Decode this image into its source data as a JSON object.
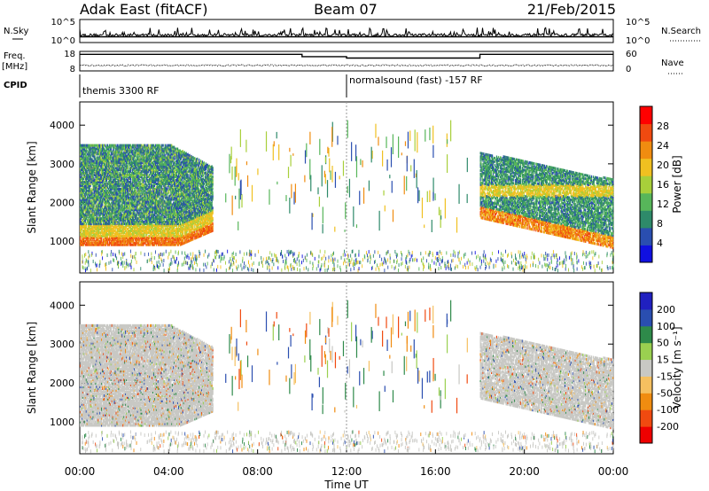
{
  "header": {
    "station": "Adak East (fitACF)",
    "beam": "Beam 07",
    "date": "21/Feb/2015"
  },
  "left_labels": {
    "nsky": "N.Sky",
    "freq": "Freq.",
    "freq_unit": "[MHz]",
    "cpid": "CPID"
  },
  "right_labels": {
    "nsearch": "N.Search",
    "nave": "Nave"
  },
  "cpid_labels": [
    "themis 3300 RF",
    "normalsound (fast) -157 RF"
  ],
  "colors": {
    "frame": "#000000",
    "power_scale": [
      "#1010e0",
      "#2a4eb0",
      "#2e8a6a",
      "#57b65a",
      "#a8cf3a",
      "#f0c020",
      "#f08c10",
      "#f04a10",
      "#ff0000"
    ],
    "velocity_scale": [
      "#ee0000",
      "#f04a10",
      "#f08c10",
      "#f5c060",
      "#c8c8c4",
      "#9ad050",
      "#2e8a4a",
      "#2a4eb0",
      "#2020c0"
    ]
  },
  "chart_data": [
    {
      "type": "line",
      "name": "noise",
      "ylabel_left": "N.Sky",
      "ylabel_right": "N.Search",
      "left_ticks": [
        "10^5",
        "10^0"
      ],
      "right_ticks": [
        "10^5",
        "10^0"
      ]
    },
    {
      "type": "line",
      "name": "frequency-nave",
      "ylabel_left": "Freq. [MHz]",
      "ylabel_right": "Nave",
      "left_ticks": [
        "18",
        "8"
      ],
      "right_ticks": [
        "60",
        "0"
      ],
      "xlim_hours": [
        0,
        24
      ],
      "series": [
        {
          "name": "Freq.",
          "points": [
            [
              0,
              16.5
            ],
            [
              10,
              16.5
            ],
            [
              10,
              15.3
            ],
            [
              12,
              15.3
            ],
            [
              12,
              14.6
            ],
            [
              18,
              14.6
            ],
            [
              18,
              16.5
            ],
            [
              24,
              16.5
            ]
          ]
        }
      ]
    },
    {
      "type": "heatmap",
      "name": "power",
      "xlabel": "",
      "ylabel": "Slant Range [km]",
      "ylim": [
        180,
        4600
      ],
      "yticks": [
        1000,
        2000,
        3000,
        4000
      ],
      "xlim_hours": [
        0,
        24
      ],
      "colorbar_label": "Power [dB]",
      "colorbar_ticks": [
        "28",
        "24",
        "20",
        "16",
        "12",
        "8",
        "4"
      ],
      "colorbar_range": [
        0,
        32
      ]
    },
    {
      "type": "heatmap",
      "name": "velocity",
      "xlabel": "Time UT",
      "ylabel": "Slant Range [km]",
      "ylim": [
        180,
        4600
      ],
      "yticks": [
        1000,
        2000,
        3000,
        4000
      ],
      "xlim_hours": [
        0,
        24
      ],
      "xticks": [
        "00:00",
        "04:00",
        "08:00",
        "12:00",
        "16:00",
        "20:00",
        "00:00"
      ],
      "colorbar_label": "Velocity [m s⁻¹]",
      "colorbar_ticks": [
        "200",
        "100",
        "50",
        "15",
        "-15",
        "-50",
        "-100",
        "-200"
      ]
    }
  ]
}
